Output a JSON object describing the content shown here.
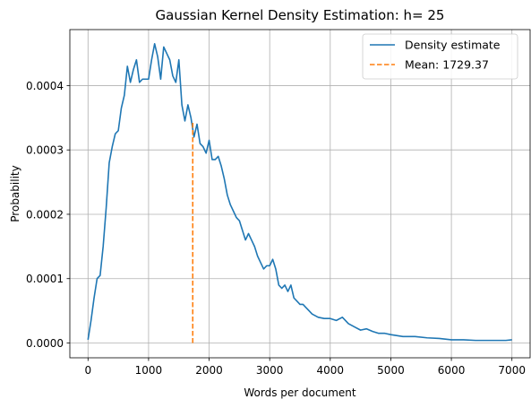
{
  "chart_data": {
    "type": "line",
    "title": "Gaussian Kernel Density Estimation: h= 25",
    "xlabel": "Words per document",
    "ylabel": "Probability",
    "xlim": [
      -300,
      7300
    ],
    "ylim": [
      -2.3e-05,
      0.000487
    ],
    "xticks": [
      0,
      1000,
      2000,
      3000,
      4000,
      5000,
      6000,
      7000
    ],
    "xtick_labels": [
      "0",
      "1000",
      "2000",
      "3000",
      "4000",
      "5000",
      "6000",
      "7000"
    ],
    "yticks": [
      0.0,
      0.0001,
      0.0002,
      0.0003,
      0.0004
    ],
    "ytick_labels": [
      "0.0000",
      "0.0001",
      "0.0002",
      "0.0003",
      "0.0004"
    ],
    "grid": true,
    "legend_position": "top-right",
    "series": [
      {
        "name": "Density estimate",
        "color": "#1f77b4",
        "style": "solid",
        "x": [
          0,
          50,
          100,
          150,
          200,
          250,
          300,
          350,
          400,
          450,
          500,
          550,
          600,
          650,
          700,
          750,
          800,
          850,
          900,
          950,
          1000,
          1050,
          1100,
          1150,
          1200,
          1250,
          1300,
          1350,
          1400,
          1450,
          1500,
          1550,
          1600,
          1650,
          1700,
          1750,
          1800,
          1850,
          1900,
          1950,
          2000,
          2050,
          2100,
          2150,
          2200,
          2250,
          2300,
          2350,
          2400,
          2450,
          2500,
          2550,
          2600,
          2650,
          2700,
          2750,
          2800,
          2850,
          2900,
          2950,
          3000,
          3050,
          3100,
          3150,
          3200,
          3250,
          3300,
          3350,
          3400,
          3450,
          3500,
          3550,
          3600,
          3650,
          3700,
          3800,
          3900,
          4000,
          4100,
          4200,
          4300,
          4400,
          4500,
          4600,
          4700,
          4800,
          4900,
          5000,
          5200,
          5400,
          5600,
          5800,
          6000,
          6200,
          6400,
          6600,
          6800,
          6900,
          7000
        ],
        "y": [
          5e-06,
          3.5e-05,
          7e-05,
          0.0001,
          0.000105,
          0.00015,
          0.00021,
          0.00028,
          0.000305,
          0.000325,
          0.00033,
          0.000365,
          0.000385,
          0.00043,
          0.000405,
          0.000425,
          0.00044,
          0.000405,
          0.00041,
          0.00041,
          0.00041,
          0.00044,
          0.000465,
          0.000445,
          0.00041,
          0.00046,
          0.00045,
          0.00044,
          0.000415,
          0.000405,
          0.00044,
          0.00037,
          0.000345,
          0.00037,
          0.00035,
          0.00032,
          0.00034,
          0.00031,
          0.000305,
          0.000295,
          0.000315,
          0.000285,
          0.000285,
          0.00029,
          0.000275,
          0.000255,
          0.00023,
          0.000215,
          0.000205,
          0.000195,
          0.00019,
          0.000175,
          0.00016,
          0.00017,
          0.00016,
          0.00015,
          0.000135,
          0.000125,
          0.000115,
          0.00012,
          0.00012,
          0.00013,
          0.000115,
          9e-05,
          8.5e-05,
          9e-05,
          8e-05,
          9e-05,
          7e-05,
          6.5e-05,
          6e-05,
          6e-05,
          5.5e-05,
          5e-05,
          4.5e-05,
          4e-05,
          3.8e-05,
          3.8e-05,
          3.5e-05,
          4e-05,
          3e-05,
          2.5e-05,
          2e-05,
          2.2e-05,
          1.8e-05,
          1.5e-05,
          1.5e-05,
          1.3e-05,
          1e-05,
          1e-05,
          8e-06,
          7e-06,
          5e-06,
          5e-06,
          4e-06,
          4e-06,
          4e-06,
          4e-06,
          5e-06
        ]
      },
      {
        "name": "Mean: 1729.37",
        "color": "#ff7f0e",
        "style": "dashed",
        "x": [
          1729.37,
          1729.37
        ],
        "y": [
          0.0,
          0.000345
        ]
      }
    ]
  }
}
